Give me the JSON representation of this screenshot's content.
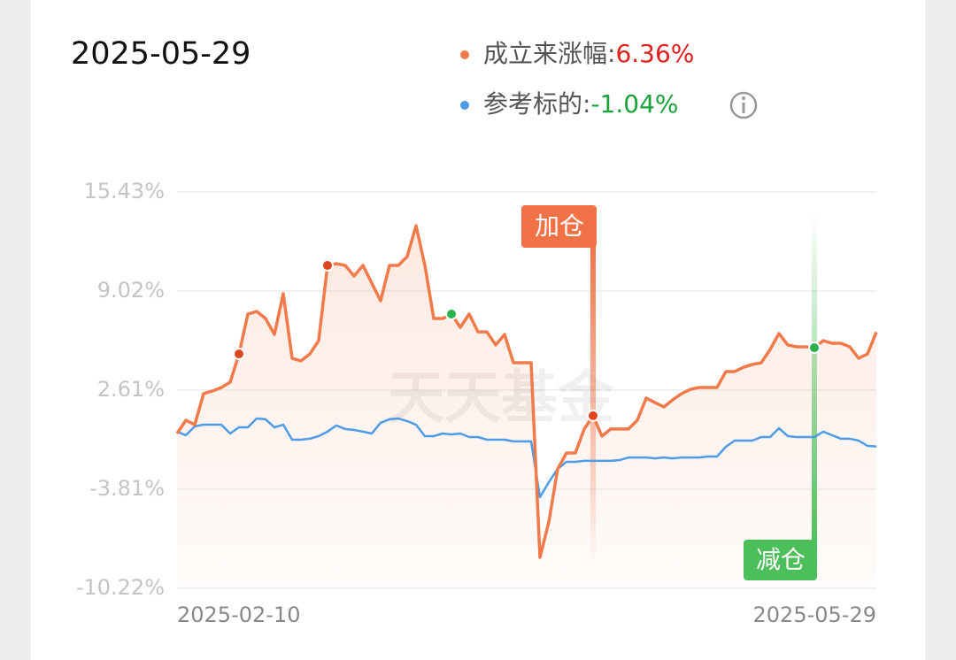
{
  "chart_data": {
    "type": "line",
    "date": "2025-05-29",
    "watermark": "天天基金",
    "categories": [
      "2025-02-10",
      null,
      null,
      null,
      null,
      null,
      null,
      null,
      null,
      null,
      null,
      null,
      null,
      null,
      null,
      null,
      null,
      null,
      null,
      null,
      null,
      null,
      null,
      null,
      null,
      null,
      null,
      null,
      null,
      null,
      null,
      null,
      null,
      null,
      null,
      null,
      null,
      null,
      null,
      null,
      null,
      null,
      null,
      null,
      null,
      null,
      null,
      null,
      null,
      null,
      null,
      null,
      null,
      null,
      null,
      null,
      null,
      null,
      null,
      null,
      null,
      null,
      null,
      null,
      null,
      null,
      null,
      null,
      null,
      null,
      null,
      null,
      null,
      null,
      null,
      null,
      null,
      null,
      null,
      "2025-05-29"
    ],
    "series": [
      {
        "name": "成立来涨幅:",
        "color": "#f07a4a",
        "value_label": "6.36%",
        "value_color": "#e0201e",
        "values": [
          -0.2,
          0.66,
          0.37,
          2.38,
          2.55,
          2.78,
          3.12,
          4.95,
          7.53,
          7.7,
          7.24,
          6.21,
          8.85,
          4.67,
          4.5,
          4.95,
          5.81,
          10.68,
          10.79,
          10.68,
          9.99,
          10.68,
          9.53,
          8.39,
          10.68,
          10.68,
          11.25,
          13.25,
          10.68,
          7.24,
          7.24,
          7.53,
          6.67,
          7.53,
          6.38,
          6.38,
          5.53,
          6.21,
          4.38,
          4.38,
          4.38,
          -8.21,
          -5.92,
          -2.49,
          -1.46,
          -1.46,
          0.09,
          0.95,
          -0.37,
          0.09,
          0.09,
          0.09,
          0.66,
          2.09,
          1.8,
          1.52,
          1.98,
          2.38,
          2.66,
          2.78,
          2.78,
          2.78,
          3.81,
          3.81,
          4.09,
          4.27,
          4.38,
          5.24,
          6.27,
          5.53,
          5.41,
          5.41,
          5.35,
          5.81,
          5.64,
          5.64,
          5.41,
          4.67,
          4.95,
          6.36
        ]
      },
      {
        "name": "参考标的:",
        "color": "#4e9be6",
        "value_label": "-1.04%",
        "value_color": "#1aa33b",
        "values": [
          -0.08,
          -0.31,
          0.26,
          0.37,
          0.37,
          0.37,
          -0.2,
          0.2,
          0.2,
          0.77,
          0.72,
          0.2,
          0.37,
          -0.6,
          -0.6,
          -0.54,
          -0.37,
          -0.08,
          0.32,
          0.09,
          0.03,
          -0.08,
          -0.2,
          0.49,
          0.72,
          0.77,
          0.6,
          0.37,
          -0.37,
          -0.37,
          -0.2,
          -0.26,
          -0.2,
          -0.43,
          -0.43,
          -0.6,
          -0.6,
          -0.6,
          -0.71,
          -0.71,
          -0.71,
          -4.32,
          -3.35,
          -2.49,
          -2.03,
          -2.03,
          -1.97,
          -1.97,
          -1.97,
          -1.97,
          -1.92,
          -1.75,
          -1.75,
          -1.75,
          -1.81,
          -1.75,
          -1.81,
          -1.75,
          -1.75,
          -1.75,
          -1.69,
          -1.69,
          -1.06,
          -0.66,
          -0.66,
          -0.66,
          -0.43,
          -0.43,
          0.14,
          -0.37,
          -0.43,
          -0.43,
          -0.43,
          -0.08,
          -0.31,
          -0.54,
          -0.54,
          -0.66,
          -1.0,
          -1.04
        ]
      }
    ],
    "buy_indices": [
      7,
      17,
      47
    ],
    "sell_indices": [
      31,
      72
    ],
    "buy_color": "#e0461e",
    "sell_color": "#2bb24c",
    "annotations": [
      {
        "text": "加仓",
        "index": 47,
        "color": "#f07246",
        "position": "top"
      },
      {
        "text": "减仓",
        "index": 72,
        "color": "#4cbf5a",
        "position": "bottom"
      }
    ],
    "ylim": [
      -10.22,
      15.43
    ],
    "yticks": [
      {
        "value": -10.22,
        "label": "-10.22%"
      },
      {
        "value": -3.81,
        "label": "-3.81%"
      },
      {
        "value": 2.61,
        "label": "2.61%"
      },
      {
        "value": 9.02,
        "label": "9.02%"
      },
      {
        "value": 15.43,
        "label": "15.43%"
      }
    ],
    "grid": true
  }
}
